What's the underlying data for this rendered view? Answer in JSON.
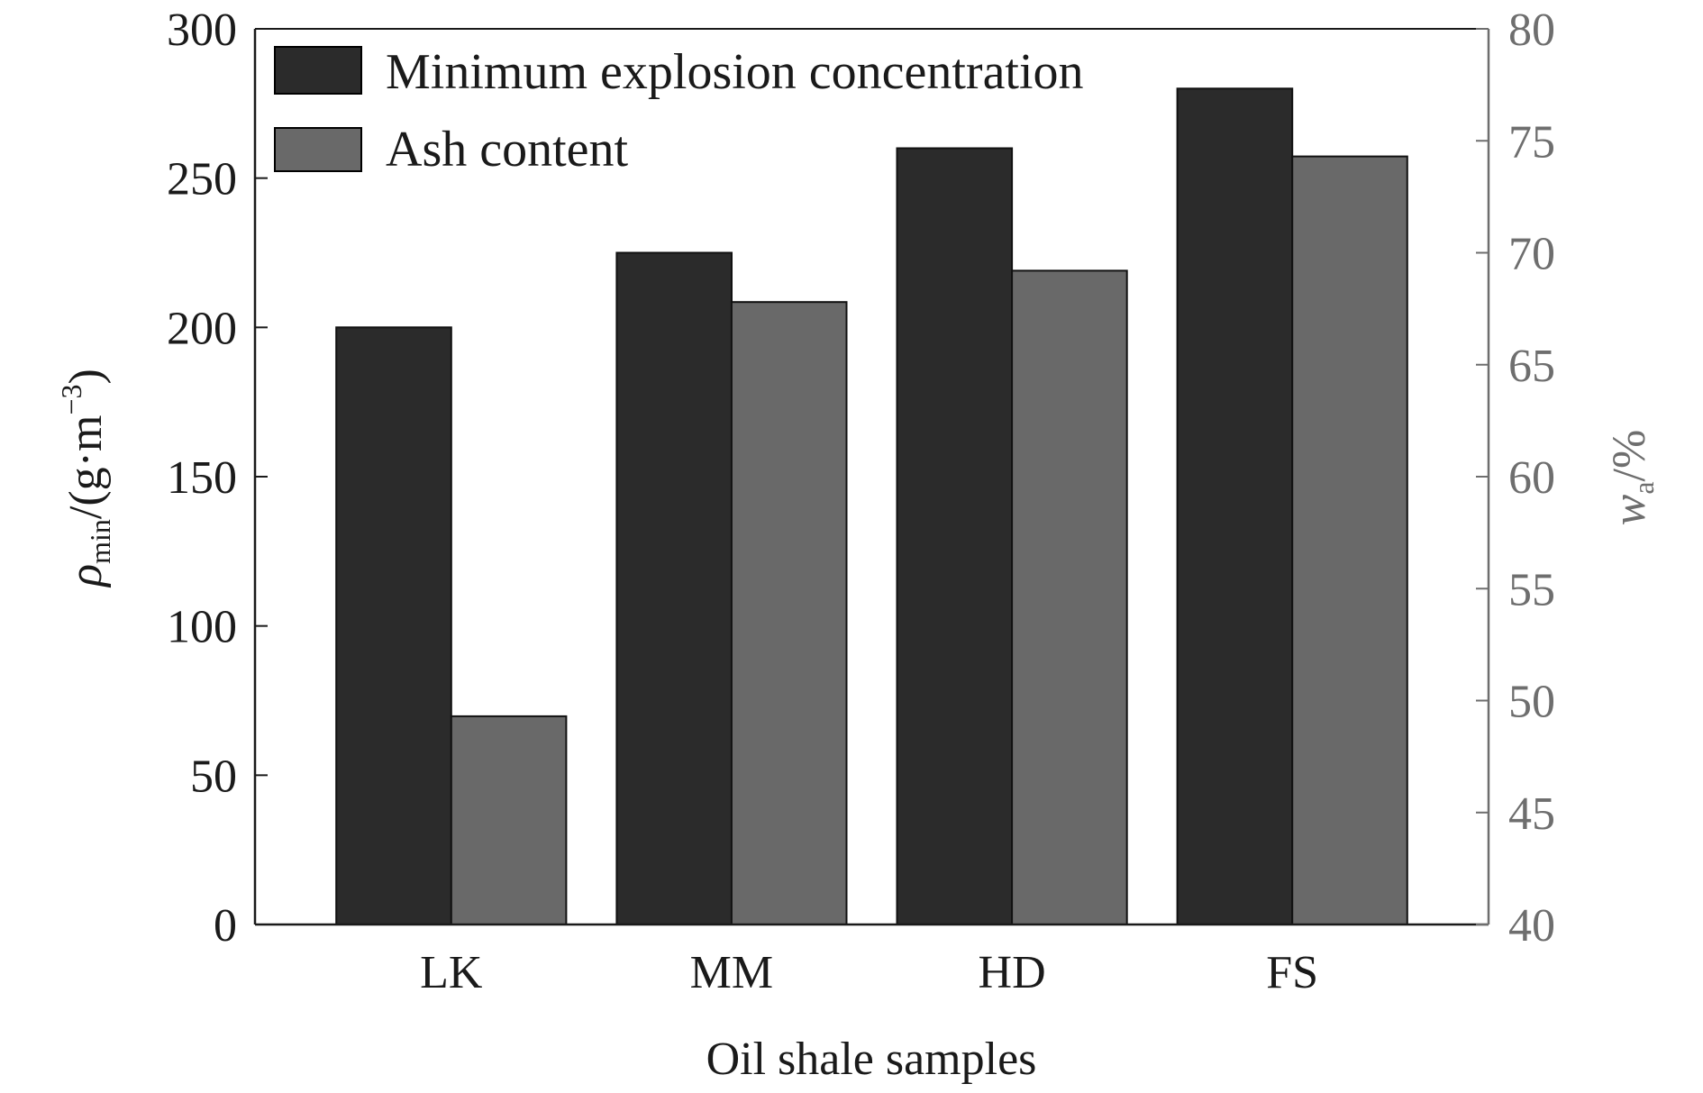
{
  "chart_data": {
    "type": "bar",
    "categories": [
      "LK",
      "MM",
      "HD",
      "FS"
    ],
    "series": [
      {
        "name": "Minimum explosion concentration",
        "axis": "left",
        "values": [
          200,
          225,
          260,
          280
        ],
        "color": "#2b2b2b"
      },
      {
        "name": "Ash content",
        "axis": "right",
        "values": [
          49.3,
          67.8,
          69.2,
          74.3
        ],
        "color": "#696969"
      }
    ],
    "xlabel": "Oil shale samples",
    "ylabel_left": {
      "symbol": "ρ",
      "sub": "min",
      "unit_pre": "/(g·m",
      "unit_sup": "−3",
      "unit_post": ")"
    },
    "ylabel_right": {
      "symbol": "w",
      "sub": "a",
      "unit": "/%"
    },
    "ylim_left": [
      0,
      300
    ],
    "yticks_left": [
      0,
      50,
      100,
      150,
      200,
      250,
      300
    ],
    "ylim_right": [
      40,
      80
    ],
    "yticks_right": [
      40,
      45,
      50,
      55,
      60,
      65,
      70,
      75,
      80
    ],
    "grid": false,
    "legend": "top-left",
    "colors": {
      "left_axis": "#1a1a1a",
      "right_axis": "#6e6e6e"
    }
  }
}
